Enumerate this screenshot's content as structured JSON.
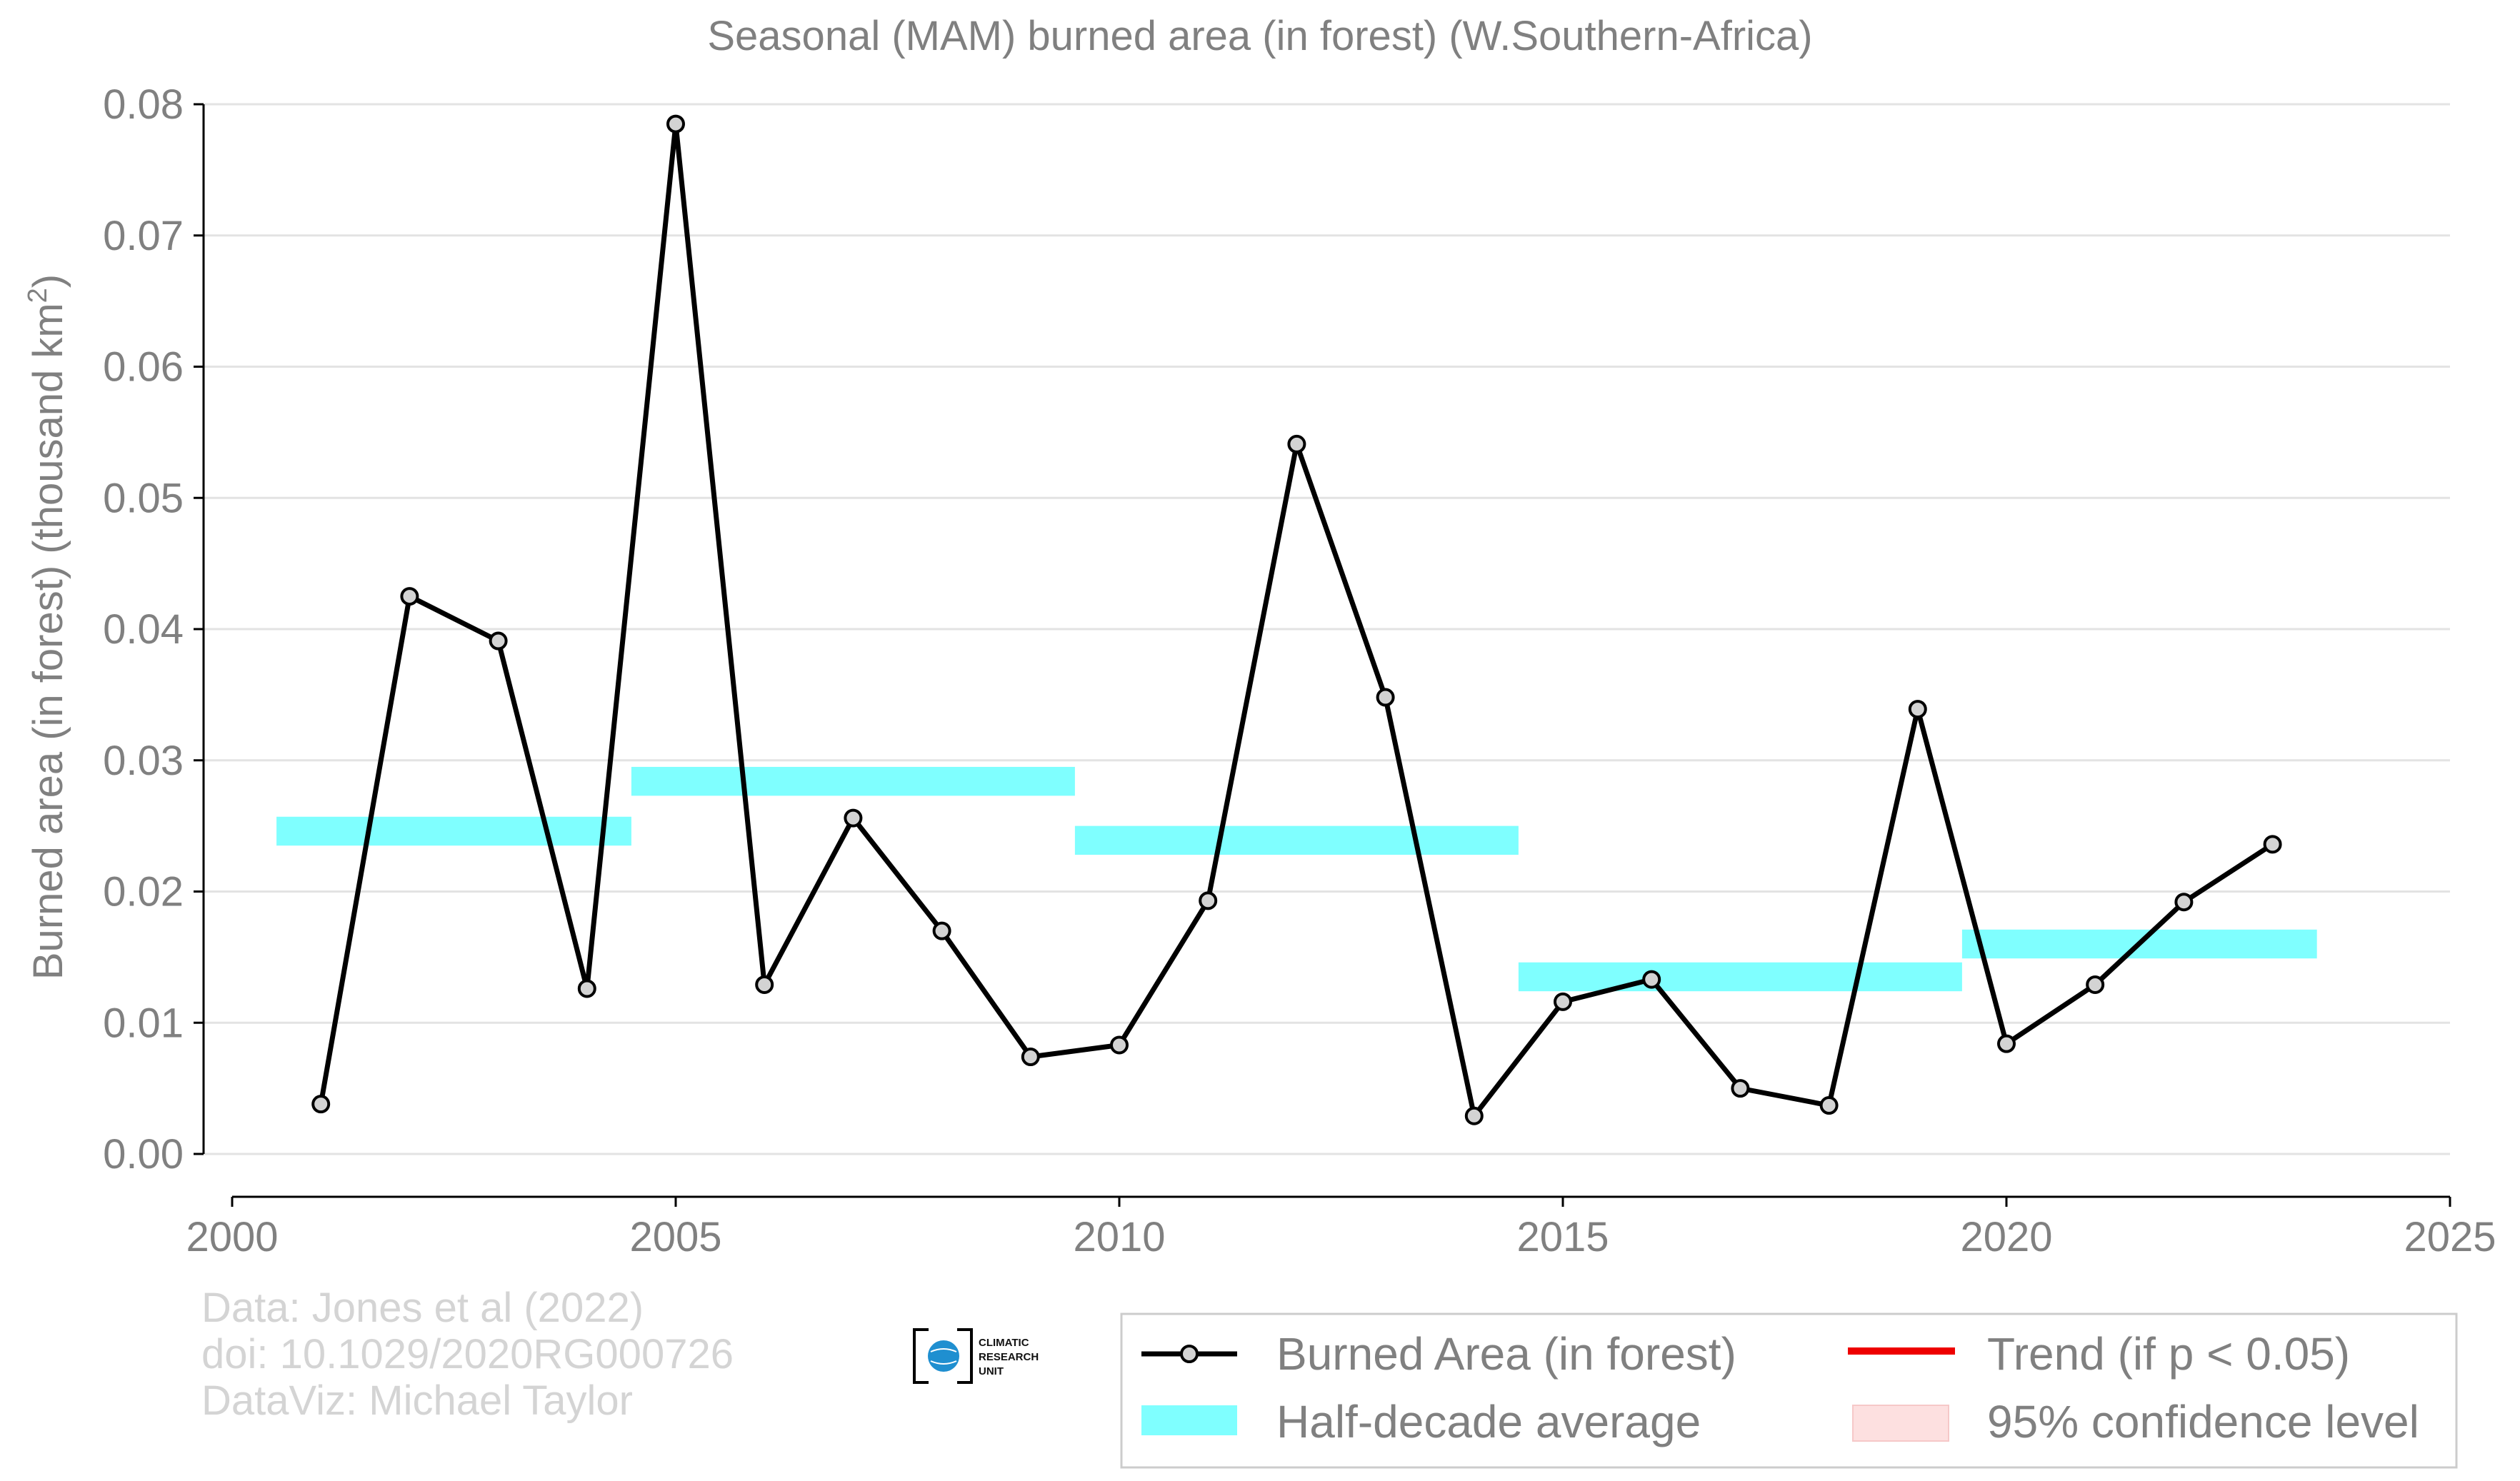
{
  "chart_data": {
    "type": "line",
    "title": "Seasonal (MAM) burned area (in forest) (W.Southern-Africa)",
    "ylabel_main": "Burned area (in forest) (thousand km",
    "ylabel_sup": "2",
    "ylabel_close": ")",
    "xlim": [
      2000,
      2025
    ],
    "ylim": [
      0.0,
      0.08
    ],
    "xticks": [
      2000,
      2005,
      2010,
      2015,
      2020,
      2025
    ],
    "yticks": [
      0.0,
      0.01,
      0.02,
      0.03,
      0.04,
      0.05,
      0.06,
      0.07,
      0.08
    ],
    "ytick_labels": [
      "0.00",
      "0.01",
      "0.02",
      "0.03",
      "0.04",
      "0.05",
      "0.06",
      "0.07",
      "0.08"
    ],
    "grid": true,
    "legend_position": "bottom-right",
    "series": [
      {
        "name": "Burned Area (in forest)",
        "color": "#000000",
        "marker_fill": "#d3d3d3",
        "x": [
          2001,
          2002,
          2003,
          2004,
          2005,
          2006,
          2007,
          2008,
          2009,
          2010,
          2011,
          2012,
          2013,
          2014,
          2015,
          2016,
          2017,
          2018,
          2019,
          2020,
          2021,
          2022,
          2023
        ],
        "y": [
          0.0038,
          0.0425,
          0.0391,
          0.0126,
          0.0785,
          0.0129,
          0.0256,
          0.017,
          0.0074,
          0.0083,
          0.0193,
          0.0541,
          0.0348,
          0.0029,
          0.0116,
          0.0133,
          0.005,
          0.0037,
          0.0339,
          0.0084,
          0.0129,
          0.0192,
          0.0236
        ]
      }
    ],
    "half_decade_average": {
      "name": "Half-decade average",
      "color": "#7fffff",
      "bands": [
        {
          "x0": 2000.5,
          "x1": 2004.5,
          "y0": 0.0235,
          "y1": 0.0257
        },
        {
          "x0": 2004.5,
          "x1": 2009.5,
          "y0": 0.0273,
          "y1": 0.0295
        },
        {
          "x0": 2009.5,
          "x1": 2014.5,
          "y0": 0.0228,
          "y1": 0.025
        },
        {
          "x0": 2014.5,
          "x1": 2019.5,
          "y0": 0.0124,
          "y1": 0.0146
        },
        {
          "x0": 2019.5,
          "x1": 2023.5,
          "y0": 0.0149,
          "y1": 0.0171
        }
      ]
    },
    "legend": [
      {
        "label": "Burned Area (in forest)",
        "kind": "line-marker",
        "color": "#000000"
      },
      {
        "label": "Trend (if p < 0.05)",
        "kind": "line",
        "color": "#ee0000"
      },
      {
        "label": "Half-decade average",
        "kind": "band",
        "color": "#7fffff"
      },
      {
        "label": "95% confidence level",
        "kind": "band",
        "color": "#fde0e0"
      }
    ]
  },
  "credits": {
    "line1": "Data: Jones et al (2022)",
    "line2": "doi: 10.1029/2020RG000726",
    "line3": "DataViz: Michael Taylor"
  },
  "logo": {
    "line1": "CLIMATIC",
    "line2": "RESEARCH",
    "line3": "UNIT"
  }
}
